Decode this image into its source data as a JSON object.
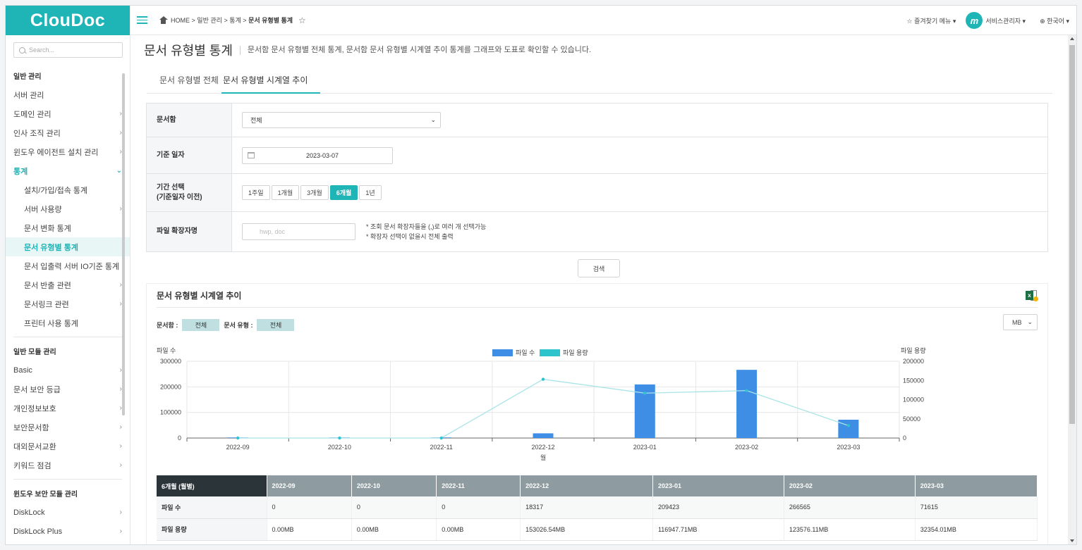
{
  "brand": "ClouDoc",
  "search_placeholder": "Search...",
  "sidebar": {
    "groups": [
      {
        "title": "일반 관리",
        "items": [
          {
            "label": "서버 관리",
            "chev": ""
          },
          {
            "label": "도메인 관리",
            "chev": ">"
          },
          {
            "label": "인사 조직 관리",
            "chev": ">"
          },
          {
            "label": "윈도우 에이전트 설치 관리",
            "chev": ">"
          },
          {
            "label": "통계",
            "chev": "v"
          }
        ]
      },
      {
        "sub": [
          {
            "label": "설치/가입/접속 통계",
            "chev": ""
          },
          {
            "label": "서버 사용량",
            "chev": ">"
          },
          {
            "label": "문서 변화 통계",
            "chev": ""
          },
          {
            "label": "문서 유형별 통계",
            "chev": ""
          },
          {
            "label": "문서 입출력 서버 IO기준 통계",
            "chev": ""
          },
          {
            "label": "문서 반출 관련",
            "chev": ">"
          },
          {
            "label": "문서링크 관련",
            "chev": ">"
          },
          {
            "label": "프린터 사용 통계",
            "chev": ""
          }
        ]
      },
      {
        "title": "일반 모듈 관리",
        "items": [
          {
            "label": "Basic",
            "chev": ">"
          },
          {
            "label": "문서 보안 등급",
            "chev": ">"
          },
          {
            "label": "개인정보보호",
            "chev": ">"
          },
          {
            "label": "보안문서함",
            "chev": ">"
          },
          {
            "label": "대외문서교환",
            "chev": ">"
          },
          {
            "label": "키워드 점검",
            "chev": ">"
          }
        ]
      },
      {
        "title": "윈도우 보안 모듈 관리",
        "items": [
          {
            "label": "DiskLock",
            "chev": ">"
          },
          {
            "label": "DiskLock Plus",
            "chev": ">"
          }
        ]
      }
    ]
  },
  "breadcrumb": {
    "home": "HOME",
    "sep1": ">",
    "p1": "일반 관리",
    "sep2": ">",
    "p2": "통계",
    "sep3": ">",
    "current": "문서 유형별 통계"
  },
  "topbar": {
    "favorites": "즐겨찾기 메뉴",
    "user": "서비스관리자",
    "avatar_letter": "m",
    "language": "한국어"
  },
  "page": {
    "title": "문서 유형별 통계",
    "description": "문서함 문서 유형별 전체 통계, 문서함 문서 유형별 시계열 추이 통계를 그래프와 도표로 확인할 수 있습니다.",
    "tabs": [
      "문서 유형별 전체",
      "문서 유형별 시계열 추이"
    ]
  },
  "form": {
    "folder_label": "문서함",
    "folder_value": "전체",
    "date_label": "기준 일자",
    "date_value": "2023-03-07",
    "period_label_1": "기간 선택",
    "period_label_2": "(기준일자 이전)",
    "periods": [
      "1주일",
      "1개월",
      "3개월",
      "6개월",
      "1년"
    ],
    "ext_label": "파일 확장자명",
    "ext_placeholder": "hwp, doc",
    "note1": "* 조회 문서 확장자들을 (,)로 여러 개 선택가능",
    "note2": "* 확장자 선택이 없을시 전체 출력",
    "search_button": "검색"
  },
  "panel": {
    "title": "문서 유형별 시계열 추이",
    "filter_folder_label": "문서함 :",
    "filter_folder_value": "전체",
    "filter_type_label": "문서 유형 :",
    "filter_type_value": "전체",
    "unit": "MB"
  },
  "chart_data": {
    "type": "bar",
    "categories": [
      "2022-09",
      "2022-10",
      "2022-11",
      "2022-12",
      "2023-01",
      "2023-02",
      "2023-03"
    ],
    "series": [
      {
        "name": "파일 수",
        "type": "bar",
        "axis": "left",
        "color": "#3d8ee4",
        "values": [
          0,
          0,
          0,
          18317,
          209423,
          266565,
          71615
        ]
      },
      {
        "name": "파일 용량",
        "type": "line",
        "axis": "right",
        "color": "#2ec4cc",
        "values": [
          0.0,
          0.0,
          0.0,
          153026.54,
          116947.71,
          123576.11,
          32354.01
        ]
      }
    ],
    "ylabel": "파일 수",
    "y2label": "파일 용량",
    "xlabel": "월",
    "ylim": [
      0,
      300000
    ],
    "y2lim": [
      0,
      200000
    ],
    "yticks": [
      0,
      100000,
      200000,
      300000
    ],
    "y2ticks": [
      0,
      50000,
      100000,
      150000,
      200000
    ],
    "legend": "top-center",
    "grid": true
  },
  "table": {
    "header": "6개월 (월별)",
    "columns": [
      "2022-09",
      "2022-10",
      "2022-11",
      "2022-12",
      "2023-01",
      "2023-02",
      "2023-03"
    ],
    "rows": [
      {
        "label": "파일 수",
        "values": [
          "0",
          "0",
          "0",
          "18317",
          "209423",
          "266565",
          "71615"
        ]
      },
      {
        "label": "파일 용량",
        "values": [
          "0.00MB",
          "0.00MB",
          "0.00MB",
          "153026.54MB",
          "116947.71MB",
          "123576.11MB",
          "32354.01MB"
        ]
      }
    ]
  }
}
